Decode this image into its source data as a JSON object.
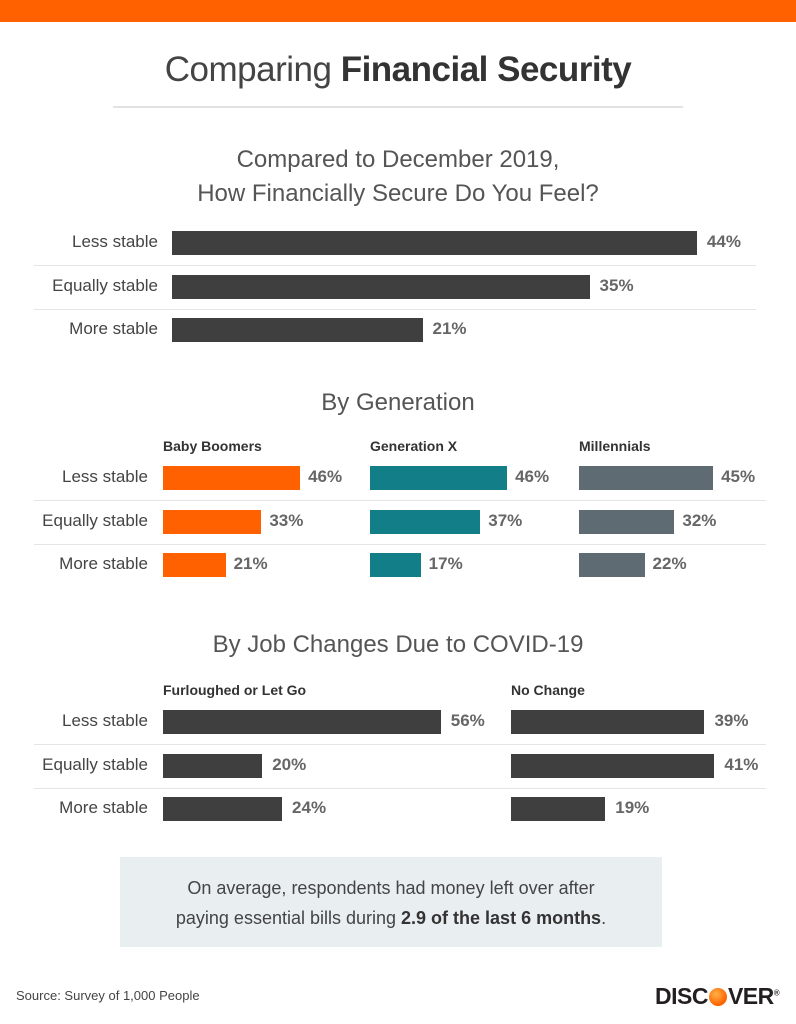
{
  "header": {
    "title_light": "Comparing",
    "title_bold": "Financial Security"
  },
  "colors": {
    "accent": "#ff6000",
    "overall_bar": "#3f3f3f",
    "baby_boomers": "#ff6000",
    "generation_x": "#127e87",
    "millennials": "#5f6b72",
    "job_bar": "#3f3f3f",
    "callout_bg": "#e9eef0"
  },
  "chart_data": [
    {
      "type": "bar",
      "orientation": "horizontal",
      "title": "Compared to December 2019, How Financially Secure Do You Feel?",
      "title_lines": [
        "Compared to December 2019,",
        "How Financially Secure Do You Feel?"
      ],
      "categories": [
        "Less stable",
        "Equally stable",
        "More stable"
      ],
      "values": [
        44,
        35,
        21
      ],
      "value_labels": [
        "44%",
        "35%",
        "21%"
      ],
      "unit": "%"
    },
    {
      "type": "bar",
      "orientation": "horizontal",
      "title": "By Generation",
      "categories": [
        "Less stable",
        "Equally stable",
        "More stable"
      ],
      "series": [
        {
          "name": "Baby Boomers",
          "values": [
            46,
            33,
            21
          ],
          "labels": [
            "46%",
            "33%",
            "21%"
          ]
        },
        {
          "name": "Generation X",
          "values": [
            46,
            37,
            17
          ],
          "labels": [
            "46%",
            "37%",
            "17%"
          ]
        },
        {
          "name": "Millennials",
          "values": [
            45,
            32,
            22
          ],
          "labels": [
            "45%",
            "32%",
            "22%"
          ]
        }
      ],
      "unit": "%"
    },
    {
      "type": "bar",
      "orientation": "horizontal",
      "title": "By Job Changes Due to COVID-19",
      "categories": [
        "Less stable",
        "Equally stable",
        "More stable"
      ],
      "series": [
        {
          "name": "Furloughed or Let Go",
          "values": [
            56,
            20,
            24
          ],
          "labels": [
            "56%",
            "20%",
            "24%"
          ]
        },
        {
          "name": "No Change",
          "values": [
            39,
            41,
            19
          ],
          "labels": [
            "39%",
            "41%",
            "19%"
          ]
        }
      ],
      "unit": "%"
    }
  ],
  "callout": {
    "text_plain": "On average, respondents had money left over after paying essential bills during ",
    "line1": "On average, respondents had money left over after",
    "line2_plain": "paying essential bills during ",
    "line2_bold": "2.9 of the last 6 months",
    "line2_end": "."
  },
  "footer": {
    "source": "Source: Survey of 1,000 People",
    "logo_before": "DISC",
    "logo_after": "VER",
    "logo_mark": "®"
  }
}
